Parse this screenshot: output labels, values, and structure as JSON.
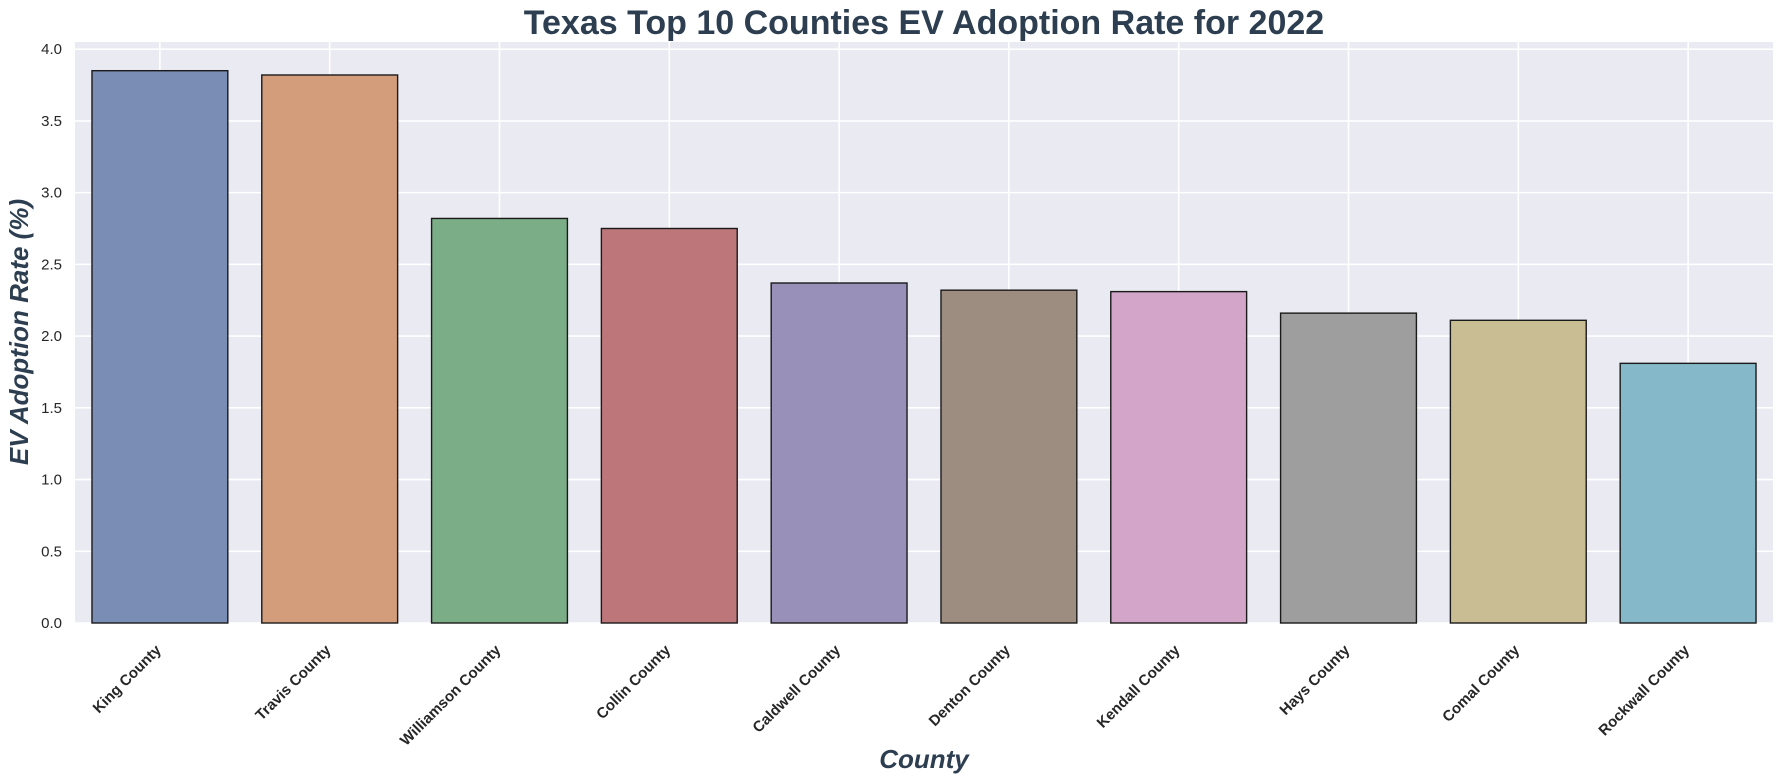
{
  "chart_data": {
    "type": "bar",
    "title": "Texas Top 10 Counties EV Adoption Rate for 2022",
    "xlabel": "County",
    "ylabel": "EV Adoption Rate (%)",
    "categories": [
      "King County",
      "Travis County",
      "Williamson County",
      "Collin County",
      "Caldwell County",
      "Denton County",
      "Kendall County",
      "Hays County",
      "Comal County",
      "Rockwall County"
    ],
    "values": [
      3.85,
      3.82,
      2.82,
      2.75,
      2.37,
      2.32,
      2.31,
      2.16,
      2.11,
      1.81
    ],
    "ylim": [
      0,
      4.05
    ],
    "yticks": [
      "0.0",
      "0.5",
      "1.0",
      "1.5",
      "2.0",
      "2.5",
      "3.0",
      "3.5",
      "4.0"
    ],
    "grid": true,
    "colors": [
      "#7a8db5",
      "#d39d7c",
      "#7bad87",
      "#bd777b",
      "#9890b9",
      "#9d8d80",
      "#d3a5c9",
      "#9e9e9e",
      "#c8bd93",
      "#85b8c9"
    ],
    "background": "#eaeaf2",
    "title_color": "#2c3e50"
  }
}
